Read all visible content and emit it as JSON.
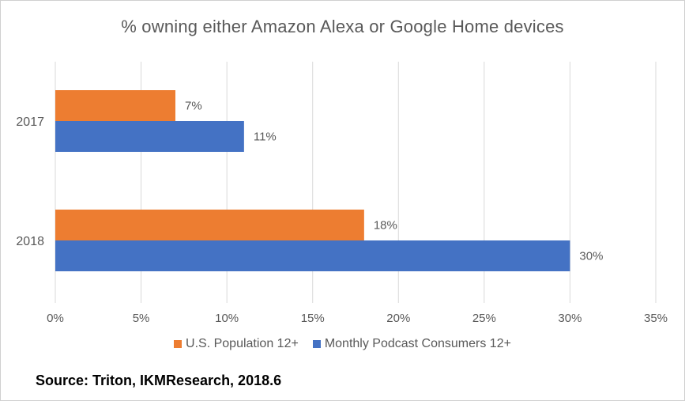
{
  "chart_data": {
    "type": "bar",
    "orientation": "horizontal",
    "title": "% owning either Amazon Alexa or Google Home devices",
    "categories": [
      "2017",
      "2018"
    ],
    "series": [
      {
        "name": "U.S. Population 12+",
        "values": [
          7,
          18
        ],
        "labels": [
          "7%",
          "18%"
        ],
        "color": "#ED7D31"
      },
      {
        "name": "Monthly Podcast Consumers 12+",
        "values": [
          11,
          30
        ],
        "labels": [
          "11%",
          "30%"
        ],
        "color": "#4472C4"
      }
    ],
    "xlim": [
      0,
      35
    ],
    "xticks": [
      "0%",
      "5%",
      "10%",
      "15%",
      "20%",
      "25%",
      "30%",
      "35%"
    ],
    "grid": true,
    "legend_position": "bottom"
  },
  "source": "Source: Triton, IKMResearch, 2018.6"
}
